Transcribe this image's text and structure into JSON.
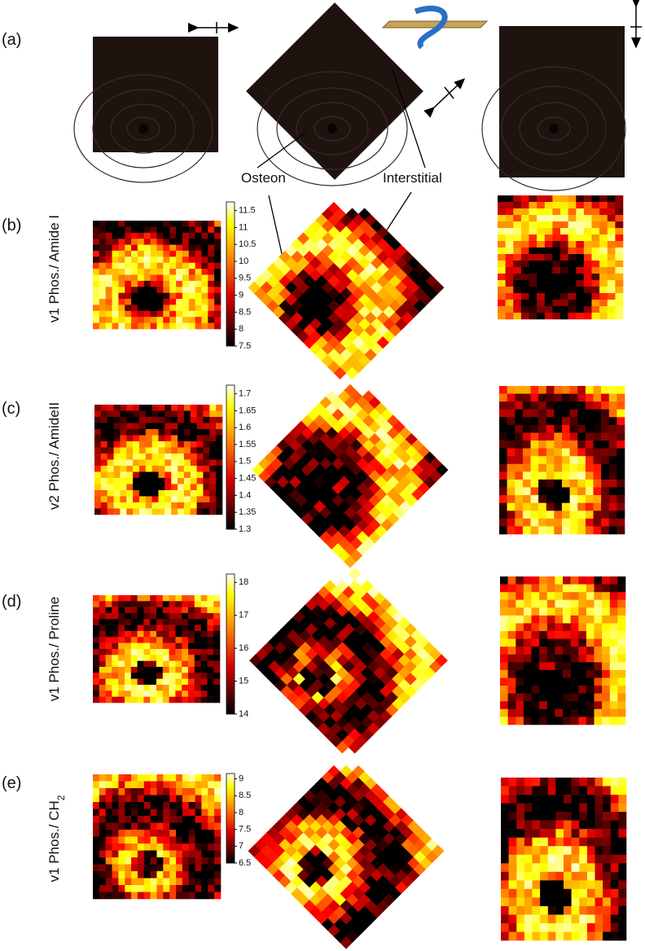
{
  "panels": [
    {
      "label": "(a)"
    },
    {
      "label": "(b)",
      "ylabel": "v1 Phos./ Amide I",
      "colorbar": [
        11.5,
        11,
        10.5,
        10,
        9.5,
        9,
        8.5,
        8,
        7.5
      ]
    },
    {
      "label": "(c)",
      "ylabel": "v2 Phos./ AmideII",
      "colorbar": [
        1.7,
        1.65,
        1.6,
        1.55,
        1.5,
        1.45,
        1.4,
        1.35,
        1.3
      ]
    },
    {
      "label": "(d)",
      "ylabel": "v1 Phos./ Proline",
      "colorbar": [
        18,
        17,
        16,
        15,
        14
      ]
    },
    {
      "label": "(e)",
      "ylabel": "v1 Phos./ CH",
      "ylabel_subscript": "2",
      "colorbar": [
        9,
        8.5,
        8,
        7.5,
        7,
        6.5
      ]
    }
  ],
  "annotations": {
    "osteon": "Osteon",
    "interstitial": "Interstitial"
  }
}
